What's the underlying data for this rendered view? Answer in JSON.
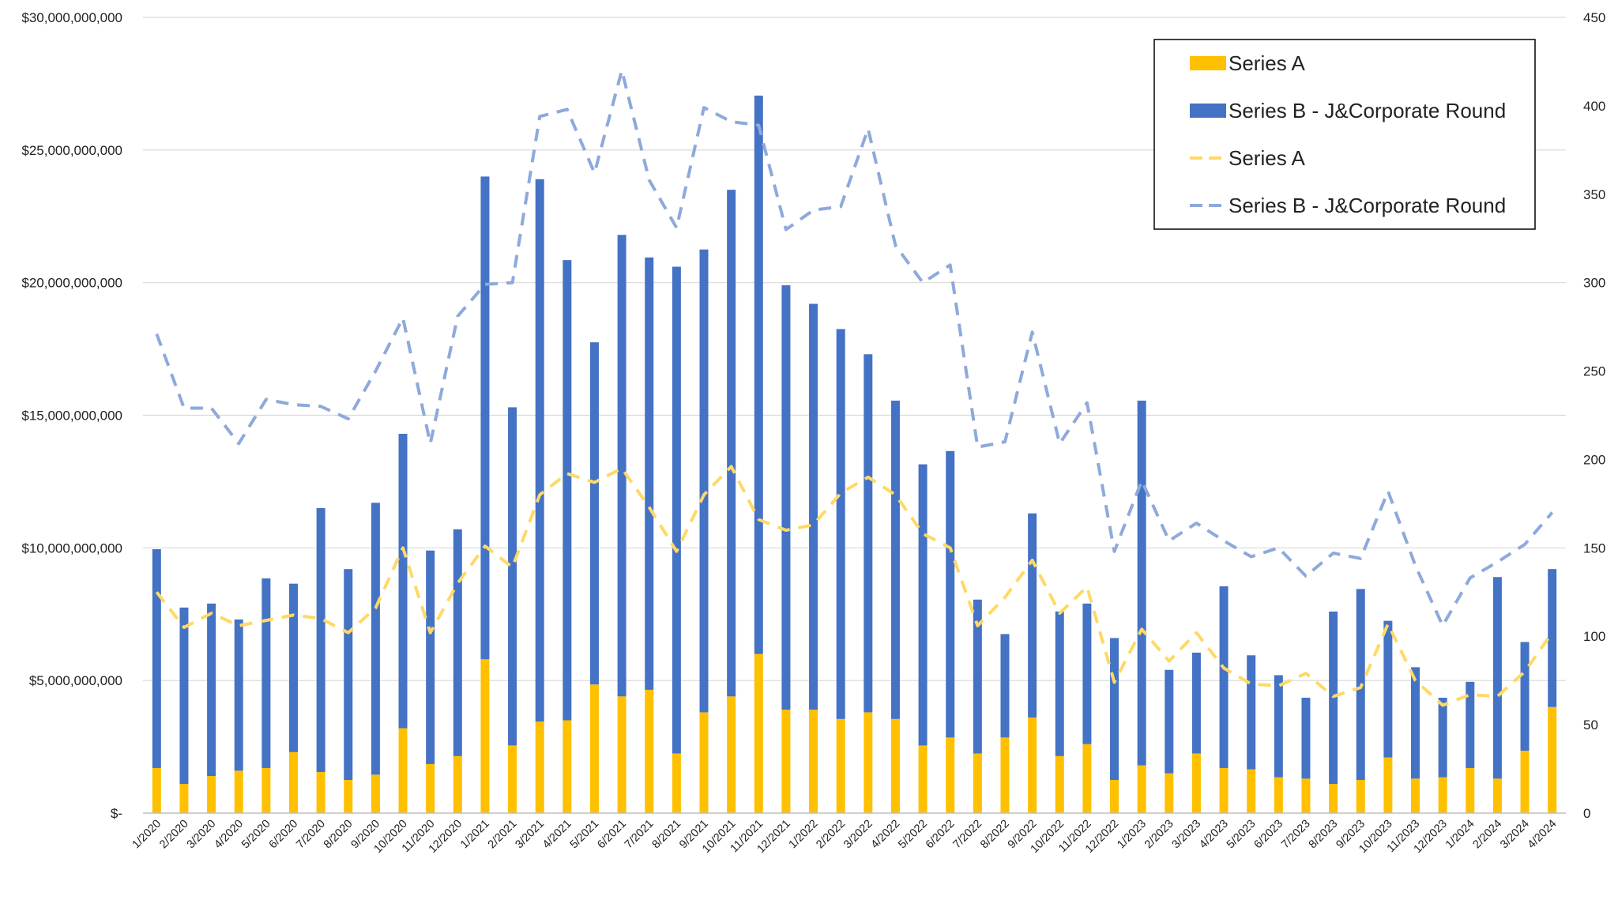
{
  "chart_data": {
    "type": "bar",
    "stacked": true,
    "categories": [
      "1/2020",
      "2/2020",
      "3/2020",
      "4/2020",
      "5/2020",
      "6/2020",
      "7/2020",
      "8/2020",
      "9/2020",
      "10/2020",
      "11/2020",
      "12/2020",
      "1/2021",
      "2/2021",
      "3/2021",
      "4/2021",
      "5/2021",
      "6/2021",
      "7/2021",
      "8/2021",
      "9/2021",
      "10/2021",
      "11/2021",
      "12/2021",
      "1/2022",
      "2/2022",
      "3/2022",
      "4/2022",
      "5/2022",
      "6/2022",
      "7/2022",
      "8/2022",
      "9/2022",
      "10/2022",
      "11/2022",
      "12/2022",
      "1/2023",
      "2/2023",
      "3/2023",
      "4/2023",
      "5/2023",
      "6/2023",
      "7/2023",
      "8/2023",
      "9/2023",
      "10/2023",
      "11/2023",
      "12/2023",
      "1/2024",
      "2/2024",
      "3/2024",
      "4/2024"
    ],
    "series": [
      {
        "name": "Series A",
        "kind": "bar",
        "axis": "left",
        "color": "#FFC000",
        "values": [
          1700000000,
          1100000000,
          1400000000,
          1600000000,
          1700000000,
          2300000000,
          1550000000,
          1250000000,
          1450000000,
          3200000000,
          1850000000,
          2150000000,
          5800000000,
          2550000000,
          3450000000,
          3500000000,
          4850000000,
          4400000000,
          4650000000,
          2250000000,
          3800000000,
          4400000000,
          6000000000,
          3900000000,
          3900000000,
          3550000000,
          3800000000,
          3550000000,
          2550000000,
          2850000000,
          2250000000,
          2850000000,
          3600000000,
          2150000000,
          2600000000,
          1250000000,
          1800000000,
          1500000000,
          2250000000,
          1700000000,
          1650000000,
          1350000000,
          1300000000,
          1100000000,
          1250000000,
          2100000000,
          1300000000,
          1350000000,
          1700000000,
          1300000000,
          2350000000,
          4000000000
        ]
      },
      {
        "name": "Series B - J&Corporate Round",
        "kind": "bar",
        "axis": "left",
        "color": "#4472C4",
        "values": [
          8250000000,
          6650000000,
          6500000000,
          5700000000,
          7150000000,
          6350000000,
          9950000000,
          7950000000,
          10250000000,
          11100000000,
          8050000000,
          8550000000,
          18200000000,
          12750000000,
          20450000000,
          17350000000,
          12900000000,
          17400000000,
          16300000000,
          18350000000,
          17450000000,
          19100000000,
          21050000000,
          16000000000,
          15300000000,
          14700000000,
          13500000000,
          12000000000,
          10600000000,
          10800000000,
          5800000000,
          3900000000,
          7700000000,
          5450000000,
          5300000000,
          5350000000,
          13750000000,
          3900000000,
          3800000000,
          6850000000,
          4300000000,
          3850000000,
          3050000000,
          6500000000,
          7200000000,
          5150000000,
          4200000000,
          3000000000,
          3250000000,
          7600000000,
          4100000000,
          5200000000
        ]
      },
      {
        "name": "Series A",
        "kind": "line",
        "axis": "right",
        "color": "#FFD966",
        "values": [
          125,
          105,
          113,
          106,
          109,
          112,
          110,
          102,
          116,
          150,
          102,
          130,
          151,
          139,
          180,
          192,
          187,
          195,
          173,
          148,
          180,
          196,
          166,
          160,
          163,
          181,
          190,
          180,
          158,
          150,
          106,
          122,
          143,
          113,
          128,
          74,
          104,
          86,
          102,
          82,
          73,
          72,
          79,
          66,
          71,
          107,
          75,
          61,
          67,
          66,
          80,
          102
        ]
      },
      {
        "name": "Series B - J&Corporate Round",
        "kind": "line",
        "axis": "right",
        "color": "#8EA9DB",
        "values": [
          271,
          229,
          229,
          209,
          234,
          231,
          230,
          223,
          250,
          280,
          209,
          281,
          299,
          300,
          394,
          398,
          362,
          420,
          358,
          331,
          399,
          391,
          389,
          330,
          341,
          343,
          387,
          321,
          300,
          310,
          207,
          210,
          272,
          209,
          232,
          148,
          188,
          154,
          164,
          154,
          145,
          150,
          134,
          147,
          144,
          182,
          140,
          106,
          133,
          142,
          152,
          170
        ]
      }
    ],
    "y_left": {
      "ylim": [
        0,
        30000000000
      ],
      "ticks": [
        "$-",
        "$5,000,000,000",
        "$10,000,000,000",
        "$15,000,000,000",
        "$20,000,000,000",
        "$25,000,000,000",
        "$30,000,000,000"
      ],
      "tick_values": [
        0,
        5000000000,
        10000000000,
        15000000000,
        20000000000,
        25000000000,
        30000000000
      ]
    },
    "y_right": {
      "ylim": [
        0,
        450
      ],
      "ticks": [
        "0",
        "50",
        "100",
        "150",
        "200",
        "250",
        "300",
        "350",
        "400",
        "450"
      ],
      "tick_values": [
        0,
        50,
        100,
        150,
        200,
        250,
        300,
        350,
        400,
        450
      ]
    },
    "grid": true,
    "legend_position": "top-right",
    "legend": [
      {
        "label": "Series A",
        "marker": "bar",
        "color": "#FFC000"
      },
      {
        "label": "Series B - J&Corporate Round",
        "marker": "bar",
        "color": "#4472C4"
      },
      {
        "label": "Series A",
        "marker": "dashed-line",
        "color": "#FFD966"
      },
      {
        "label": "Series B - J&Corporate Round",
        "marker": "dashed-line",
        "color": "#8EA9DB"
      }
    ],
    "title": "",
    "xlabel": "",
    "ylabel": ""
  }
}
